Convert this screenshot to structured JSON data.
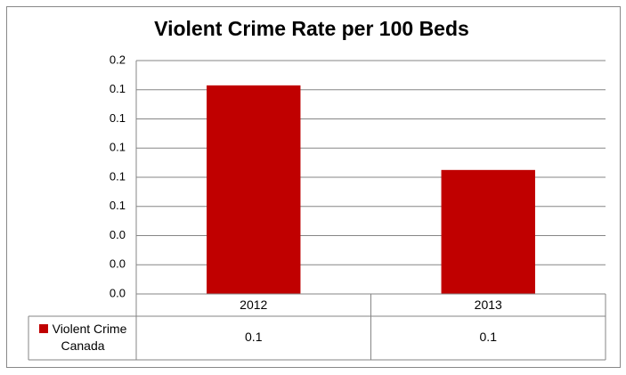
{
  "chart_data": {
    "type": "bar",
    "title": "Violent Crime Rate per 100 Beds",
    "categories": [
      "2012",
      "2013"
    ],
    "series": [
      {
        "name": "Violent Crime Canada",
        "color": "#c00000",
        "values": [
          0.143,
          0.085
        ],
        "value_labels": [
          "0.1",
          "0.1"
        ]
      }
    ],
    "ylim": [
      0,
      0.16
    ],
    "yticks": [
      {
        "value": 0,
        "label": "0.0"
      },
      {
        "value": 0.02,
        "label": "0.0"
      },
      {
        "value": 0.04,
        "label": "0.0"
      },
      {
        "value": 0.06,
        "label": "0.1"
      },
      {
        "value": 0.08,
        "label": "0.1"
      },
      {
        "value": 0.1,
        "label": "0.1"
      },
      {
        "value": 0.12,
        "label": "0.1"
      },
      {
        "value": 0.14,
        "label": "0.1"
      },
      {
        "value": 0.16,
        "label": "0.2"
      }
    ],
    "grid": true,
    "data_table": true
  }
}
